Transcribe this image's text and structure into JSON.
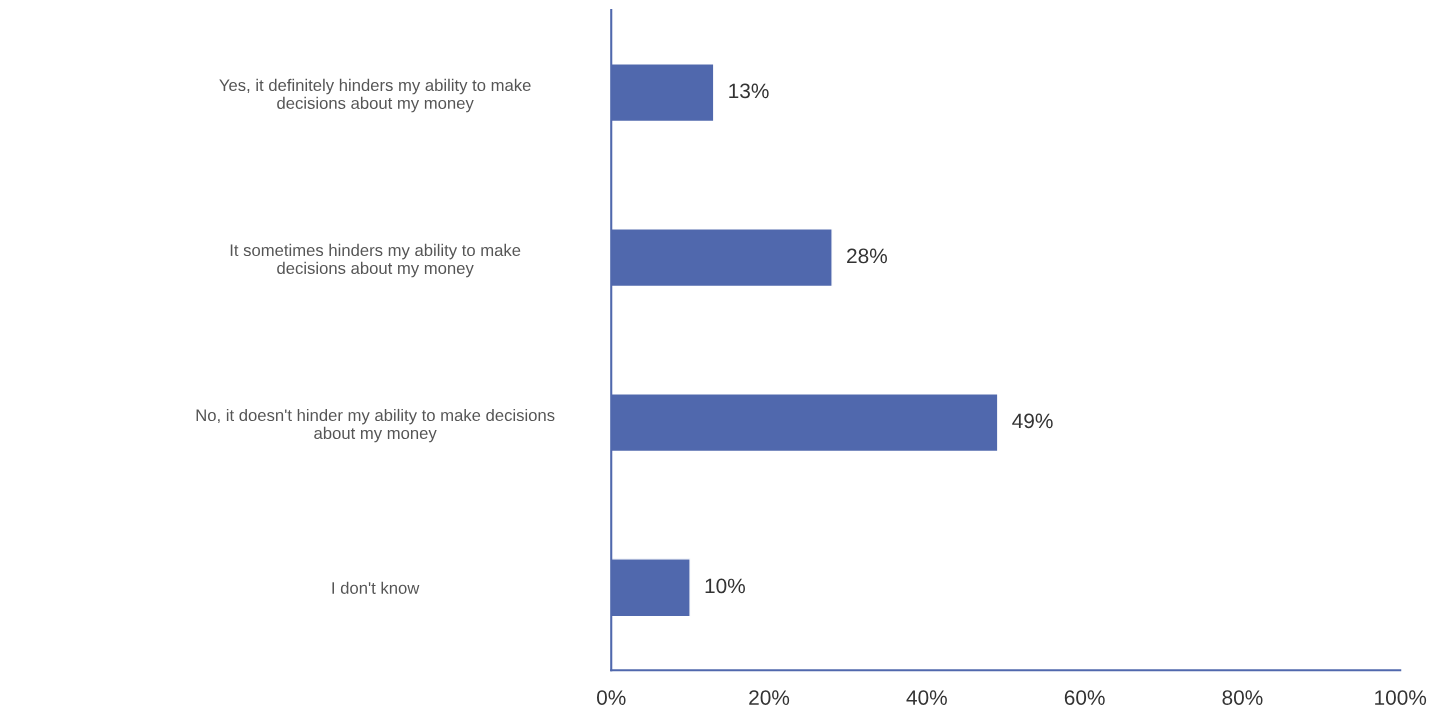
{
  "chart_data": {
    "type": "bar",
    "orientation": "horizontal",
    "categories": [
      "Yes, it definitely hinders my ability to make\ndecisions about my money",
      "It sometimes hinders my ability to make\ndecisions about my money",
      "No, it doesn't hinder my ability to make decisions\nabout my money",
      "I don't know"
    ],
    "values": [
      13,
      28,
      49,
      10
    ],
    "value_labels": [
      "13%",
      "28%",
      "49%",
      "10%"
    ],
    "color": "#5068ad",
    "xlim": [
      0,
      100
    ],
    "xticks": [
      {
        "value": 0,
        "label": "0%"
      },
      {
        "value": 20,
        "label": "20%"
      },
      {
        "value": 40,
        "label": "40%"
      },
      {
        "value": 60,
        "label": "60%"
      },
      {
        "value": 80,
        "label": "80%"
      },
      {
        "value": 100,
        "label": "100%"
      }
    ],
    "grid": false,
    "legend": false
  }
}
